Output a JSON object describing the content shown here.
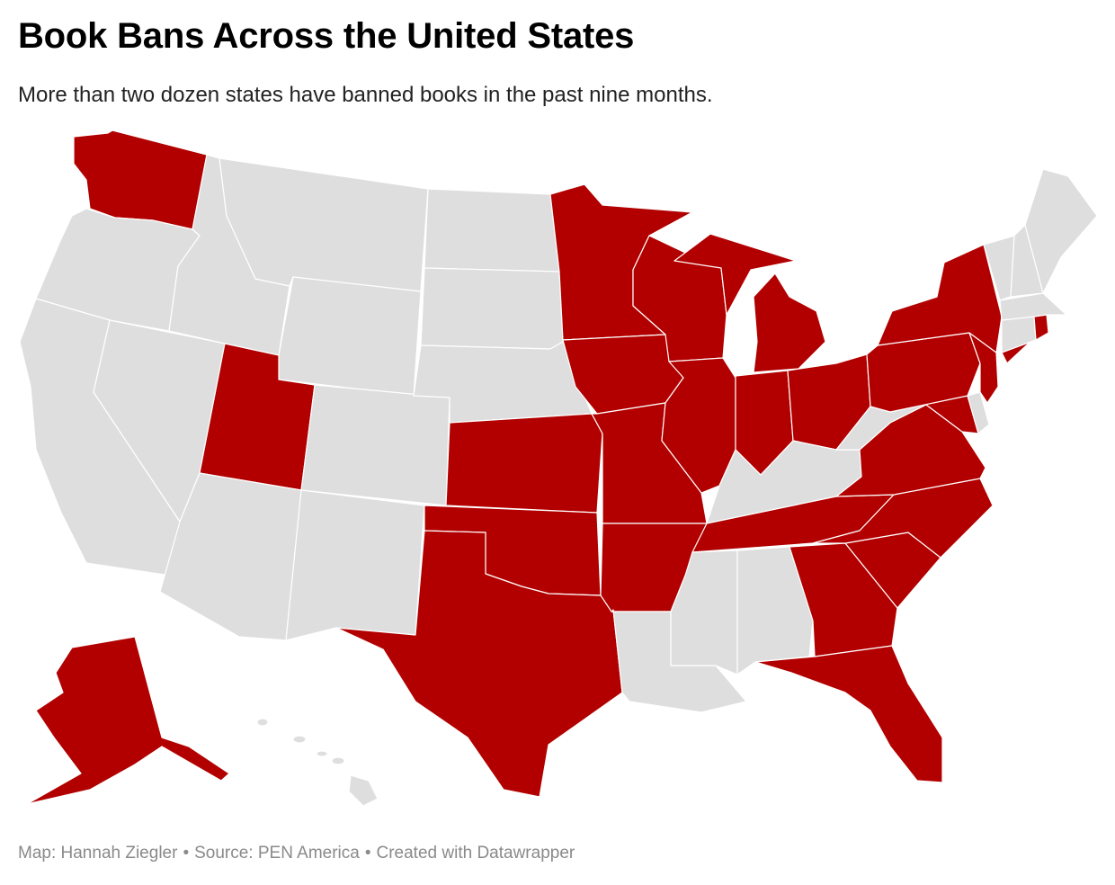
{
  "title": "Book Bans Across the United States",
  "subtitle": "More than two dozen states have banned books in the past nine months.",
  "footer": {
    "map_credit": "Map: Hannah Ziegler",
    "separator": "•",
    "source": "Source: PEN America",
    "tool": "Created with Datawrapper"
  },
  "colors": {
    "banned": "#b20000",
    "not_banned": "#dedede",
    "border": "#ffffff"
  },
  "states": [
    {
      "code": "WA",
      "banned": true
    },
    {
      "code": "OR",
      "banned": false
    },
    {
      "code": "CA",
      "banned": false
    },
    {
      "code": "NV",
      "banned": false
    },
    {
      "code": "ID",
      "banned": false
    },
    {
      "code": "MT",
      "banned": false
    },
    {
      "code": "WY",
      "banned": false
    },
    {
      "code": "UT",
      "banned": true
    },
    {
      "code": "AZ",
      "banned": false
    },
    {
      "code": "CO",
      "banned": false
    },
    {
      "code": "NM",
      "banned": false
    },
    {
      "code": "ND",
      "banned": false
    },
    {
      "code": "SD",
      "banned": false
    },
    {
      "code": "NE",
      "banned": false
    },
    {
      "code": "KS",
      "banned": true
    },
    {
      "code": "OK",
      "banned": true
    },
    {
      "code": "TX",
      "banned": true
    },
    {
      "code": "MN",
      "banned": true
    },
    {
      "code": "IA",
      "banned": true
    },
    {
      "code": "MO",
      "banned": true
    },
    {
      "code": "AR",
      "banned": true
    },
    {
      "code": "LA",
      "banned": false
    },
    {
      "code": "WI",
      "banned": true
    },
    {
      "code": "IL",
      "banned": true
    },
    {
      "code": "MI",
      "banned": true
    },
    {
      "code": "IN",
      "banned": true
    },
    {
      "code": "OH",
      "banned": true
    },
    {
      "code": "KY",
      "banned": false
    },
    {
      "code": "TN",
      "banned": true
    },
    {
      "code": "MS",
      "banned": false
    },
    {
      "code": "AL",
      "banned": false
    },
    {
      "code": "GA",
      "banned": true
    },
    {
      "code": "FL",
      "banned": true
    },
    {
      "code": "SC",
      "banned": true
    },
    {
      "code": "NC",
      "banned": true
    },
    {
      "code": "VA",
      "banned": true
    },
    {
      "code": "WV",
      "banned": false
    },
    {
      "code": "MD",
      "banned": true
    },
    {
      "code": "DE",
      "banned": false
    },
    {
      "code": "PA",
      "banned": true
    },
    {
      "code": "NJ",
      "banned": true
    },
    {
      "code": "NY",
      "banned": true
    },
    {
      "code": "CT",
      "banned": false
    },
    {
      "code": "RI",
      "banned": true
    },
    {
      "code": "MA",
      "banned": false
    },
    {
      "code": "VT",
      "banned": false
    },
    {
      "code": "NH",
      "banned": false
    },
    {
      "code": "ME",
      "banned": false
    },
    {
      "code": "AK",
      "banned": true
    },
    {
      "code": "HI",
      "banned": false
    }
  ]
}
